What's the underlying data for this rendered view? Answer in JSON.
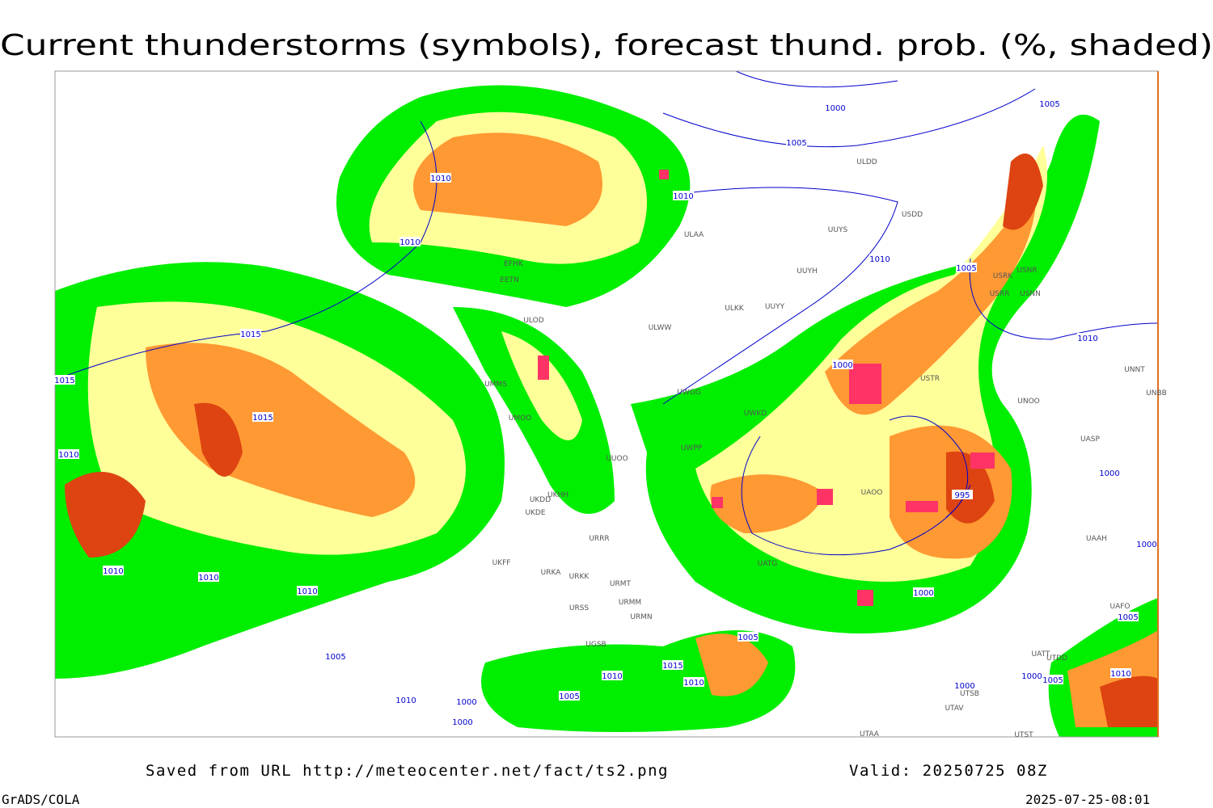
{
  "title": "Current thunderstorms (symbols), forecast thund. prob. (%, shaded)",
  "footer": {
    "source": "Saved from URL http://meteocenter.net/fact/ts2.png",
    "valid": "Valid: 20250725 08Z",
    "software": "GrADS/COLA",
    "timestamp": "2025-07-25-08:01"
  },
  "isobar_labels": [
    "1000",
    "1005",
    "1005",
    "1010",
    "1010",
    "1010",
    "1010",
    "1005",
    "1015",
    "1015",
    "1000",
    "1010",
    "1015",
    "1010",
    "995",
    "1000",
    "1010",
    "1010",
    "1010",
    "1000",
    "1000",
    "1005",
    "1005",
    "1015",
    "1010",
    "1010",
    "1005",
    "1010",
    "1000",
    "1000",
    "1005",
    "1000",
    "1005",
    "1010",
    "1000"
  ],
  "station_labels": [
    "ULDD",
    "USDD",
    "UUYS",
    "ULAA",
    "UUYH",
    "USRK",
    "USNR",
    "USRR",
    "USNN",
    "ULKK",
    "UUYY",
    "ULWW",
    "ULOD",
    "EFHK",
    "EETN",
    "UMMS",
    "UMOO",
    "UWGG",
    "UWKD",
    "USTR",
    "UNOO",
    "UNBB",
    "UNNT",
    "UASP",
    "UUOO",
    "UWPP",
    "UKHH",
    "UKDD",
    "UKDE",
    "UAOO",
    "UATG",
    "URRR",
    "UKFF",
    "URKA",
    "URKK",
    "URMT",
    "URMM",
    "URSS",
    "URMN",
    "UGSB",
    "UAAH",
    "UATT",
    "UTDD",
    "UAFO",
    "UTAA",
    "UTSB",
    "UTAV",
    "UTST"
  ]
}
